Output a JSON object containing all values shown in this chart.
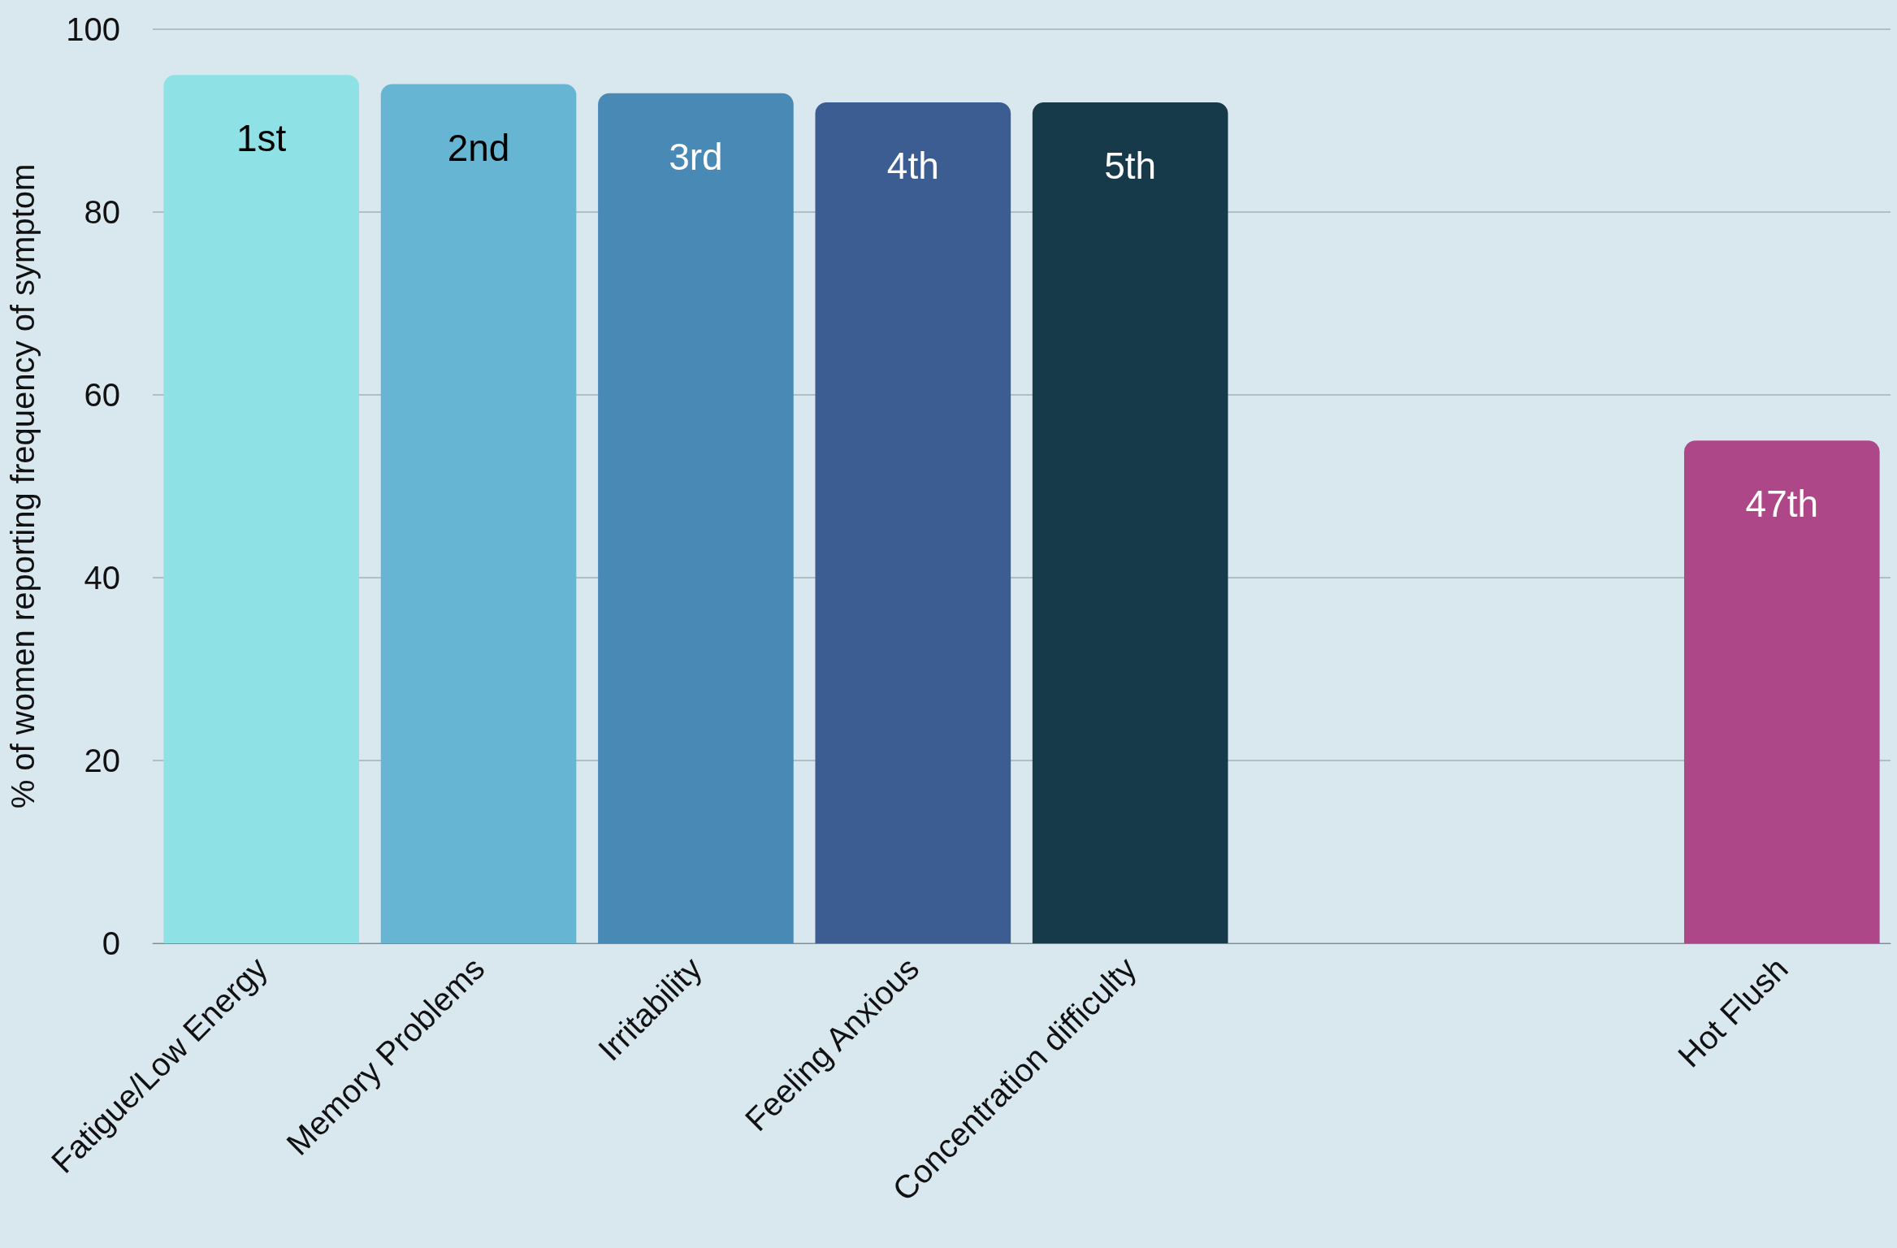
{
  "chart_data": {
    "type": "bar",
    "ylabel": "% of women reporting frequency of symptom",
    "categories": [
      "Fatigue/Low Energy",
      "Memory Problems",
      "Irritability",
      "Feeling Anxious",
      "Concentration difficulty",
      null,
      null,
      "Hot Flush"
    ],
    "values": [
      95,
      94,
      93,
      92,
      92,
      null,
      null,
      55
    ],
    "colors": [
      "#8ee2e6",
      "#66b5d3",
      "#4889b6",
      "#3b5d91",
      "#173a4a",
      null,
      null,
      "#ad4787"
    ],
    "annotations": [
      {
        "text": "1st",
        "x": "Fatigue/Low Energy",
        "y": 95
      },
      {
        "text": "2nd",
        "x": "Memory Problems",
        "y": 94
      },
      {
        "text": "3rd",
        "x": "Irritability",
        "y": 93
      },
      {
        "text": "4th",
        "x": "Feeling Anxious",
        "y": 92
      },
      {
        "text": "5th",
        "x": "Concentration difficulty",
        "y": 92
      },
      {
        "text": "47th",
        "x": "Hot Flush",
        "y": 55
      }
    ],
    "ylim": [
      0,
      100
    ],
    "yticks": [
      0,
      20,
      40,
      60,
      80,
      100
    ],
    "grid": "y"
  }
}
